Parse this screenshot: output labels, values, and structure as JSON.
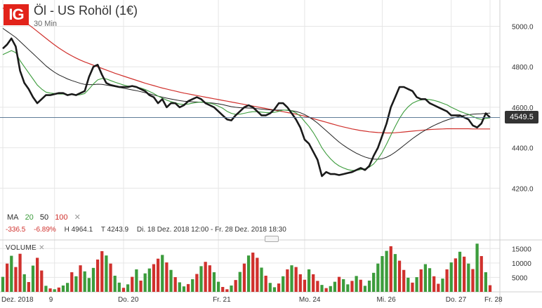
{
  "header": {
    "logo": "IG",
    "title": "Öl - US Rohöl (1€)",
    "interval": "30 Min"
  },
  "legend": {
    "ma_label": "MA",
    "ma_periods": [
      "20",
      "50",
      "100"
    ],
    "ma_colors": [
      "#3c9c3c",
      "#222222",
      "#d0312d"
    ],
    "close_symbol": "✕"
  },
  "stats": {
    "change": "-336.5",
    "change_pct": "-6.89%",
    "high": "H 4964.1",
    "low": "T 4243.9",
    "range": "Di. 18 Dez. 2018 12:00 - Fr. 28 Dez. 2018 18:30"
  },
  "volume_panel": {
    "label": "VOLUME",
    "close_symbol": "✕"
  },
  "current_price": "4549.5",
  "colors": {
    "price": "#1a1a1a",
    "ma20": "#3c9c3c",
    "ma50": "#222222",
    "ma100": "#d0312d",
    "vol_up": "#3c9c3c",
    "vol_down": "#d0312d",
    "grid": "#e6e6e6",
    "current_line": "#4a6a8a",
    "logo": "#e2231a"
  },
  "chart_data": {
    "type": "line",
    "x_tick_labels": [
      "Dez. 2018",
      "9",
      "Do. 20",
      "Fr. 21",
      "Mo. 24",
      "Mi. 26",
      "Do. 27",
      "Fr. 28"
    ],
    "y_tick_labels": [
      "5000.0",
      "4800.0",
      "4600.0",
      "4400.0",
      "4200.0"
    ],
    "y_ticks": [
      5000,
      4800,
      4600,
      4400,
      4200
    ],
    "ylim": [
      4090,
      5130
    ],
    "price": [
      4890,
      4910,
      4940,
      4900,
      4780,
      4720,
      4690,
      4650,
      4620,
      4640,
      4660,
      4660,
      4665,
      4670,
      4670,
      4660,
      4665,
      4660,
      4670,
      4680,
      4750,
      4800,
      4810,
      4760,
      4720,
      4710,
      4705,
      4700,
      4700,
      4700,
      4705,
      4700,
      4690,
      4680,
      4660,
      4650,
      4620,
      4640,
      4600,
      4620,
      4620,
      4600,
      4610,
      4630,
      4640,
      4650,
      4640,
      4620,
      4610,
      4600,
      4580,
      4560,
      4540,
      4535,
      4560,
      4580,
      4600,
      4610,
      4600,
      4580,
      4560,
      4560,
      4570,
      4590,
      4620,
      4620,
      4600,
      4570,
      4540,
      4500,
      4440,
      4420,
      4380,
      4340,
      4260,
      4280,
      4270,
      4270,
      4265,
      4270,
      4275,
      4280,
      4290,
      4300,
      4290,
      4310,
      4360,
      4400,
      4460,
      4520,
      4600,
      4650,
      4700,
      4700,
      4690,
      4680,
      4650,
      4640,
      4640,
      4620,
      4610,
      4600,
      4590,
      4580,
      4560,
      4560,
      4560,
      4550,
      4540,
      4510,
      4500,
      4520,
      4570,
      4549.5
    ],
    "ma20": [
      4860,
      4870,
      4880,
      4870,
      4830,
      4800,
      4770,
      4740,
      4710,
      4690,
      4675,
      4670,
      4668,
      4665,
      4665,
      4663,
      4662,
      4660,
      4662,
      4668,
      4690,
      4715,
      4735,
      4742,
      4740,
      4732,
      4724,
      4717,
      4710,
      4705,
      4703,
      4700,
      4695,
      4688,
      4678,
      4668,
      4655,
      4645,
      4635,
      4628,
      4622,
      4616,
      4614,
      4616,
      4620,
      4624,
      4626,
      4624,
      4620,
      4615,
      4605,
      4595,
      4580,
      4570,
      4565,
      4566,
      4570,
      4575,
      4578,
      4578,
      4576,
      4574,
      4573,
      4575,
      4580,
      4586,
      4586,
      4582,
      4572,
      4556,
      4530,
      4505,
      4475,
      4440,
      4400,
      4370,
      4345,
      4325,
      4310,
      4300,
      4292,
      4288,
      4288,
      4292,
      4296,
      4304,
      4320,
      4345,
      4378,
      4418,
      4462,
      4505,
      4545,
      4578,
      4602,
      4620,
      4630,
      4636,
      4640,
      4638,
      4634,
      4628,
      4620,
      4612,
      4600,
      4590,
      4580,
      4572,
      4565,
      4555,
      4545,
      4540,
      4545,
      4548
    ],
    "ma50": [
      4990,
      4975,
      4960,
      4945,
      4925,
      4905,
      4885,
      4865,
      4845,
      4825,
      4805,
      4788,
      4773,
      4760,
      4750,
      4740,
      4732,
      4725,
      4718,
      4713,
      4712,
      4712,
      4714,
      4713,
      4710,
      4706,
      4702,
      4698,
      4694,
      4690,
      4686,
      4682,
      4677,
      4672,
      4667,
      4661,
      4655,
      4650,
      4645,
      4641,
      4637,
      4633,
      4630,
      4628,
      4627,
      4626,
      4625,
      4624,
      4622,
      4620,
      4617,
      4613,
      4608,
      4603,
      4600,
      4598,
      4597,
      4596,
      4595,
      4593,
      4591,
      4589,
      4587,
      4586,
      4586,
      4586,
      4585,
      4583,
      4579,
      4573,
      4564,
      4552,
      4538,
      4522,
      4503,
      4484,
      4465,
      4446,
      4428,
      4412,
      4398,
      4385,
      4373,
      4363,
      4354,
      4348,
      4344,
      4343,
      4346,
      4353,
      4364,
      4378,
      4394,
      4411,
      4428,
      4445,
      4460,
      4474,
      4487,
      4499,
      4510,
      4520,
      4529,
      4537,
      4544,
      4550,
      4555,
      4560,
      4563,
      4566,
      4567,
      4568,
      4570,
      4571
    ],
    "ma100": [
      5090,
      5080,
      5068,
      5055,
      5040,
      5024,
      5008,
      4992,
      4975,
      4958,
      4941,
      4924,
      4908,
      4893,
      4879,
      4866,
      4854,
      4843,
      4833,
      4824,
      4816,
      4808,
      4800,
      4792,
      4784,
      4776,
      4768,
      4761,
      4754,
      4747,
      4740,
      4733,
      4726,
      4719,
      4713,
      4707,
      4701,
      4695,
      4690,
      4685,
      4680,
      4675,
      4670,
      4666,
      4662,
      4658,
      4654,
      4650,
      4646,
      4642,
      4638,
      4634,
      4630,
      4626,
      4622,
      4618,
      4614,
      4610,
      4606,
      4602,
      4598,
      4594,
      4590,
      4586,
      4582,
      4578,
      4574,
      4570,
      4566,
      4561,
      4556,
      4550,
      4544,
      4538,
      4532,
      4526,
      4520,
      4514,
      4508,
      4503,
      4498,
      4493,
      4489,
      4485,
      4482,
      4479,
      4477,
      4475,
      4474,
      4473,
      4473,
      4474,
      4476,
      4478,
      4480,
      4482,
      4484,
      4486,
      4488,
      4490,
      4491,
      4492,
      4493,
      4494,
      4494,
      4494,
      4494,
      4494,
      4494,
      4493,
      4493,
      4493,
      4493,
      4493
    ],
    "volume_y_tick_labels": [
      "15000",
      "10000",
      "5000"
    ],
    "volume_y_ticks": [
      15000,
      10000,
      5000
    ],
    "volume_ylim": [
      0,
      17500
    ],
    "volume": [
      5200,
      9800,
      12500,
      8600,
      13200,
      6100,
      3400,
      9100,
      11800,
      7400,
      2100,
      1200,
      900,
      1500,
      2200,
      3100,
      6800,
      5400,
      9200,
      7100,
      4800,
      8300,
      11200,
      14100,
      12600,
      9800,
      5600,
      3200,
      1400,
      2600,
      5200,
      7800,
      3900,
      6400,
      8100,
      9600,
      11500,
      12800,
      10200,
      7600,
      5100,
      3300,
      1900,
      2700,
      4400,
      6200,
      8900,
      10400,
      9200,
      6800,
      3500,
      1700,
      900,
      2200,
      4100,
      6900,
      9800,
      12600,
      13600,
      11800,
      8400,
      5600,
      3100,
      1600,
      2900,
      5400,
      7800,
      9200,
      8600,
      6100,
      4200,
      7800,
      6100,
      3800,
      2400,
      1300,
      2000,
      3500,
      5200,
      4400,
      2600,
      3800,
      5500,
      4200,
      2100,
      3900,
      6600,
      9800,
      12400,
      14200,
      15800,
      13100,
      10800,
      7600,
      4900,
      3200,
      5100,
      7800,
      9600,
      8200,
      5400,
      2800,
      4600,
      7800,
      10200,
      11600,
      13900,
      12200,
      9800,
      7900,
      16700,
      12400,
      6800,
      2300
    ],
    "volume_up": [
      true,
      false,
      true,
      false,
      false,
      true,
      false,
      true,
      false,
      false,
      true,
      false,
      true,
      false,
      true,
      true,
      false,
      true,
      false,
      true,
      true,
      true,
      false,
      false,
      true,
      false,
      true,
      true,
      false,
      true,
      false,
      true,
      false,
      true,
      true,
      false,
      false,
      true,
      false,
      true,
      false,
      true,
      true,
      false,
      true,
      false,
      true,
      false,
      false,
      true,
      true,
      false,
      false,
      true,
      false,
      true,
      false,
      true,
      false,
      false,
      true,
      false,
      true,
      true,
      false,
      true,
      false,
      true,
      false,
      false,
      false,
      true,
      false,
      false,
      true,
      false,
      true,
      true,
      false,
      true,
      true,
      false,
      true,
      false,
      true,
      true,
      true,
      true,
      true,
      true,
      false,
      true,
      false,
      false,
      true,
      false,
      true,
      false,
      true,
      true,
      false,
      false,
      true,
      false,
      true,
      false,
      true,
      false,
      true,
      false,
      true,
      false,
      true,
      false
    ]
  }
}
